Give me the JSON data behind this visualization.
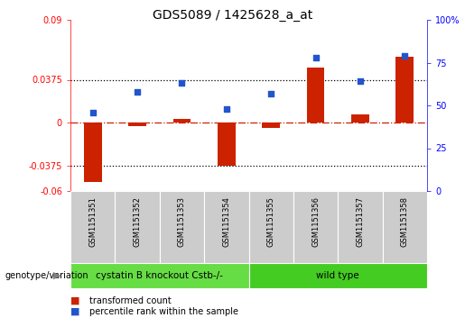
{
  "title": "GDS5089 / 1425628_a_at",
  "samples": [
    "GSM1151351",
    "GSM1151352",
    "GSM1151353",
    "GSM1151354",
    "GSM1151355",
    "GSM1151356",
    "GSM1151357",
    "GSM1151358"
  ],
  "transformed_count": [
    -0.052,
    -0.003,
    0.003,
    -0.038,
    -0.005,
    0.048,
    0.007,
    0.058
  ],
  "percentile_rank": [
    46,
    58,
    63,
    48,
    57,
    78,
    64,
    79
  ],
  "ylim_left": [
    -0.06,
    0.09
  ],
  "ylim_right": [
    0,
    100
  ],
  "yticks_left": [
    -0.06,
    -0.0375,
    0,
    0.0375,
    0.09
  ],
  "yticks_right": [
    0,
    25,
    50,
    75,
    100
  ],
  "ytick_labels_left": [
    "-0.06",
    "-0.0375",
    "0",
    "0.0375",
    "0.09"
  ],
  "ytick_labels_right": [
    "0",
    "25",
    "50",
    "75",
    "100%"
  ],
  "hlines": [
    0.0375,
    -0.0375
  ],
  "bar_color": "#cc2200",
  "dot_color": "#2255cc",
  "genotype_groups": [
    {
      "label": "cystatin B knockout Cstb-/-",
      "start": 0,
      "end": 4,
      "color": "#66dd44"
    },
    {
      "label": "wild type",
      "start": 4,
      "end": 8,
      "color": "#44cc22"
    }
  ],
  "genotype_label": "genotype/variation",
  "legend_bar_label": "transformed count",
  "legend_dot_label": "percentile rank within the sample",
  "plot_bg": "#ffffff",
  "xtick_bg": "#cccccc",
  "title_fontsize": 10,
  "tick_fontsize": 7,
  "label_fontsize": 7.5
}
